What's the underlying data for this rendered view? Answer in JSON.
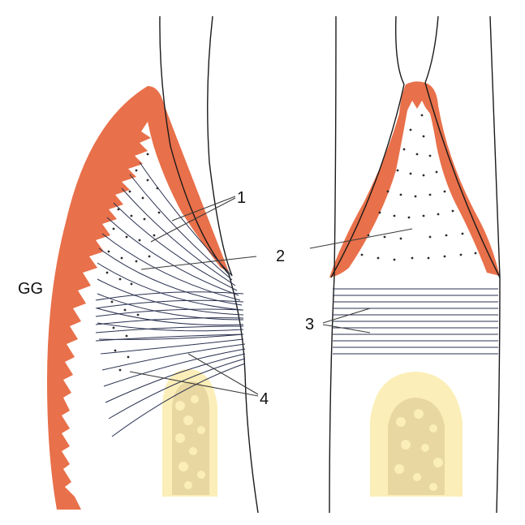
{
  "labels": {
    "gingiva_label": "GG",
    "label_1": "1",
    "label_2": "2",
    "label_3": "3",
    "label_4": "4"
  },
  "colors": {
    "epithelium": "#e8704a",
    "fiber_lines": "#2a3150",
    "tooth_outline": "#1a1a1a",
    "bone_fill": "#fbeeb8",
    "bone_trabeculae": "#c9b27a",
    "dots": "#2b2b2b",
    "leader_lines": "#3a3a3a"
  }
}
